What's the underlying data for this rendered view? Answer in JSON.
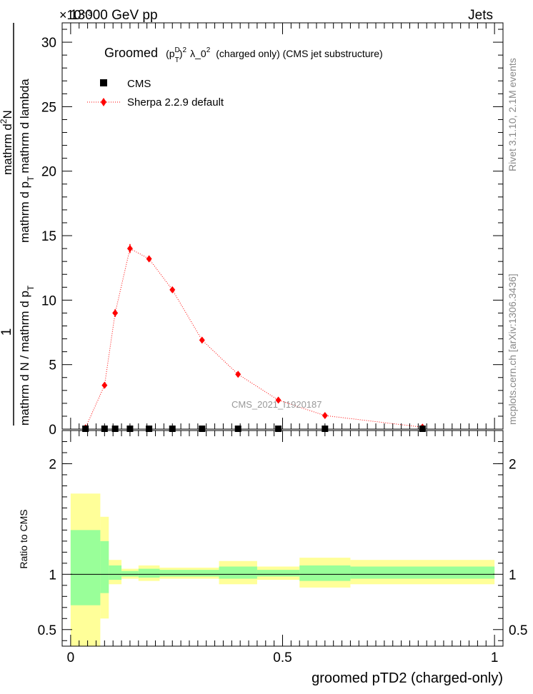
{
  "header": {
    "left": "13000 GeV pp",
    "right": "Jets",
    "exponent": "×10⁻³"
  },
  "side_labels": {
    "rivet": "Rivet 3.1.10,  2.1M events",
    "mcplots": "mcplots.cern.ch [arXiv:1306.3436]"
  },
  "chart_data": [
    {
      "type": "scatter",
      "title": "Groomed (p_T^D)^2 λ_0^2 (charged only) (CMS jet substructure)",
      "title_parts": {
        "lead": "Groomed",
        "p": "p",
        "p_sup": "D",
        "p_sub": "T",
        "paren_sup": "2",
        "lambda": "λ_0",
        "lambda_sup": "2",
        "tail": "(charged only) (CMS jet substructure)"
      },
      "ylabel_parts": {
        "numerator": "1",
        "denominator": "mathrm d N / mathrm d p",
        "denominator_sub": "T",
        "dn_top": "mathrm d",
        "dn_sup": "2",
        "dn_n": "N",
        "dn_bottom": "mathrm d p",
        "dn_bottom_sub": "T",
        "dn_tail": "mathrm d lambda"
      },
      "y_scale_exponent": "×10⁻³",
      "xlim": [
        -0.02,
        1.02
      ],
      "ylim": [
        0,
        31.5
      ],
      "y_ticks": [
        0,
        5,
        10,
        15,
        20,
        25,
        30
      ],
      "y_tick_labels": [
        "0",
        "5",
        "10",
        "15",
        "20",
        "25",
        "30"
      ],
      "legend": {
        "placement": "top-left",
        "entries": [
          "CMS",
          "Sherpa 2.2.9 default"
        ]
      },
      "watermark": "CMS_2021_I1920187",
      "series": [
        {
          "name": "CMS",
          "color": "#000000",
          "marker": "square",
          "x": [
            0.035,
            0.08,
            0.105,
            0.14,
            0.185,
            0.24,
            0.31,
            0.395,
            0.49,
            0.6,
            0.83
          ],
          "y": [
            0,
            0,
            0,
            0,
            0,
            0,
            0,
            0,
            0,
            0,
            0
          ]
        },
        {
          "name": "Sherpa 2.2.9 default",
          "color": "#ff0000",
          "marker": "diamond",
          "line": "dotted",
          "x": [
            0.035,
            0.08,
            0.105,
            0.14,
            0.185,
            0.24,
            0.31,
            0.395,
            0.49,
            0.6,
            0.83
          ],
          "y": [
            0.1,
            3.4,
            9.0,
            14.0,
            13.2,
            10.8,
            6.9,
            4.25,
            2.25,
            1.05,
            0.15
          ],
          "yerr": [
            0.05,
            0.2,
            0.3,
            0.35,
            0.25,
            0.2,
            0.2,
            0.15,
            0.12,
            0.1,
            0.05
          ]
        }
      ]
    },
    {
      "type": "line",
      "ylabel": "Ratio to CMS",
      "xlabel": "groomed pTD2 (charged-only)",
      "xlim": [
        -0.02,
        1.02
      ],
      "ylim": [
        0.35,
        2.3
      ],
      "x_ticks": [
        0,
        0.5,
        1
      ],
      "x_tick_labels": [
        "0",
        "0.5",
        "1"
      ],
      "y_ticks": [
        0.5,
        1,
        2
      ],
      "y_tick_labels": [
        "0.5",
        "1",
        "2"
      ],
      "reference": 1,
      "bands": {
        "inner_color": "#99ff99",
        "outer_color": "#ffff99",
        "bins": [
          {
            "x0": 0.0,
            "x1": 0.07,
            "inner": [
              0.72,
              1.4
            ],
            "outer": [
              0.35,
              1.73
            ]
          },
          {
            "x0": 0.07,
            "x1": 0.09,
            "inner": [
              0.83,
              1.3
            ],
            "outer": [
              0.6,
              1.52
            ]
          },
          {
            "x0": 0.09,
            "x1": 0.12,
            "inner": [
              0.95,
              1.08
            ],
            "outer": [
              0.91,
              1.13
            ]
          },
          {
            "x0": 0.12,
            "x1": 0.16,
            "inner": [
              0.98,
              1.03
            ],
            "outer": [
              0.96,
              1.05
            ]
          },
          {
            "x0": 0.16,
            "x1": 0.21,
            "inner": [
              0.97,
              1.05
            ],
            "outer": [
              0.94,
              1.08
            ]
          },
          {
            "x0": 0.21,
            "x1": 0.35,
            "inner": [
              0.98,
              1.04
            ],
            "outer": [
              0.96,
              1.06
            ]
          },
          {
            "x0": 0.35,
            "x1": 0.44,
            "inner": [
              0.96,
              1.07
            ],
            "outer": [
              0.91,
              1.12
            ]
          },
          {
            "x0": 0.44,
            "x1": 0.54,
            "inner": [
              0.98,
              1.04
            ],
            "outer": [
              0.95,
              1.07
            ]
          },
          {
            "x0": 0.54,
            "x1": 0.66,
            "inner": [
              0.94,
              1.08
            ],
            "outer": [
              0.88,
              1.15
            ]
          },
          {
            "x0": 0.66,
            "x1": 1.0,
            "inner": [
              0.96,
              1.07
            ],
            "outer": [
              0.91,
              1.13
            ]
          }
        ]
      }
    }
  ]
}
